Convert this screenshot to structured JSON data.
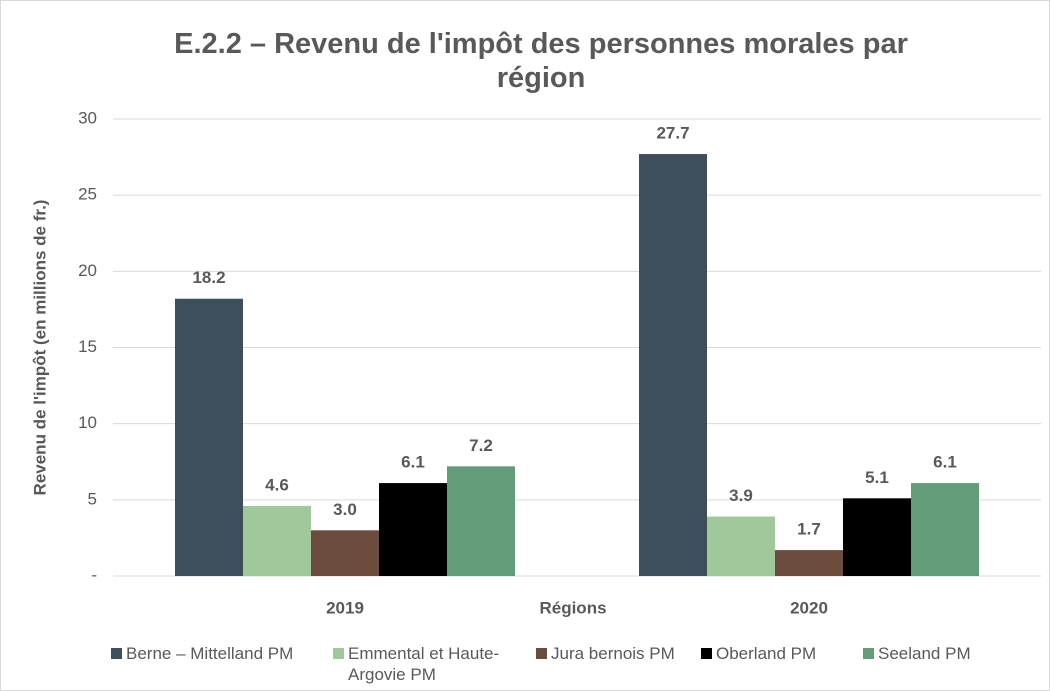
{
  "chart_data": {
    "type": "bar",
    "title": "E.2.2 – Revenu de l'impôt des personnes morales par région",
    "x_label": "Régions",
    "y_label": "Revenu de l'impôt (en millions de fr.)",
    "categories": [
      "2019",
      "2020"
    ],
    "series": [
      {
        "name": "Berne – Mittelland PM",
        "color": "#3d4f5a",
        "values": [
          18.2,
          27.7
        ],
        "value_labels": [
          "18.2",
          "27.7"
        ]
      },
      {
        "name": "Emmental et Haute-Argovie PM",
        "color": "#9fc99a",
        "values": [
          4.6,
          3.9
        ],
        "value_labels": [
          "4.6",
          "3.9"
        ]
      },
      {
        "name": "Jura bernois PM",
        "color": "#6b4c3f",
        "values": [
          3.0,
          1.7
        ],
        "value_labels": [
          "3.0",
          "1.7"
        ]
      },
      {
        "name": "Oberland PM",
        "color": "#000000",
        "values": [
          6.1,
          5.1
        ],
        "value_labels": [
          "6.1",
          "5.1"
        ]
      },
      {
        "name": "Seeland PM",
        "color": "#629c79",
        "values": [
          7.2,
          6.1
        ],
        "value_labels": [
          "7.2",
          "6.1"
        ]
      }
    ],
    "ylim": [
      0,
      30
    ],
    "yticks": [
      {
        "value": 0,
        "label": "-"
      },
      5,
      10,
      15,
      20,
      25,
      30
    ],
    "grid": true,
    "legend": "bottom"
  }
}
